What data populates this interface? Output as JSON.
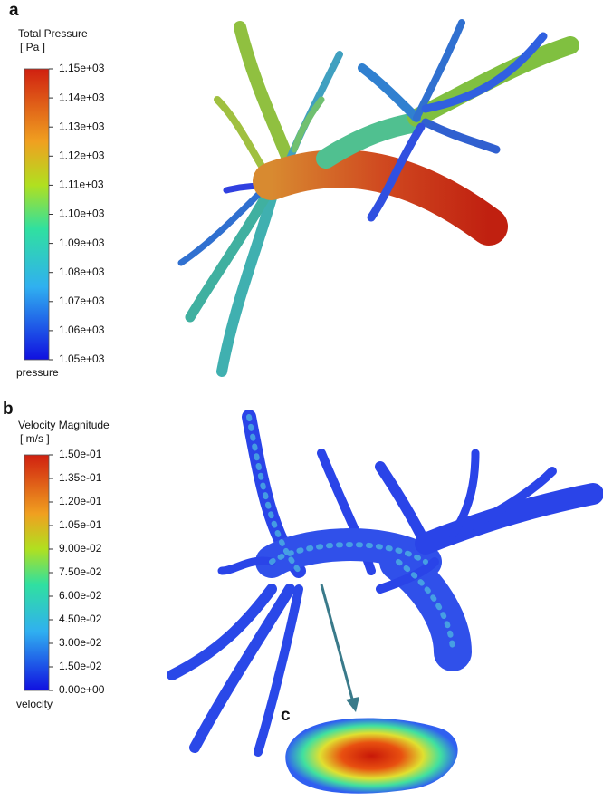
{
  "panels": [
    {
      "label": "a",
      "colorbar": {
        "title": "Total Pressure",
        "unit": "[ Pa ]",
        "variable": "pressure",
        "ticks": [
          {
            "value": 1150,
            "label": "1.15e+03"
          },
          {
            "value": 1140,
            "label": "1.14e+03"
          },
          {
            "value": 1130,
            "label": "1.13e+03"
          },
          {
            "value": 1120,
            "label": "1.12e+03"
          },
          {
            "value": 1110,
            "label": "1.11e+03"
          },
          {
            "value": 1100,
            "label": "1.10e+03"
          },
          {
            "value": 1090,
            "label": "1.09e+03"
          },
          {
            "value": 1080,
            "label": "1.08e+03"
          },
          {
            "value": 1070,
            "label": "1.07e+03"
          },
          {
            "value": 1060,
            "label": "1.06e+03"
          },
          {
            "value": 1050,
            "label": "1.05e+03"
          }
        ]
      }
    },
    {
      "label": "b",
      "colorbar": {
        "title": "Velocity Magnitude",
        "unit": "[ m/s ]",
        "variable": "velocity",
        "ticks": [
          {
            "value": 0.15,
            "label": "1.50e-01"
          },
          {
            "value": 0.135,
            "label": "1.35e-01"
          },
          {
            "value": 0.12,
            "label": "1.20e-01"
          },
          {
            "value": 0.105,
            "label": "1.05e-01"
          },
          {
            "value": 0.09,
            "label": "9.00e-02"
          },
          {
            "value": 0.075,
            "label": "7.50e-02"
          },
          {
            "value": 0.06,
            "label": "6.00e-02"
          },
          {
            "value": 0.045,
            "label": "4.50e-02"
          },
          {
            "value": 0.03,
            "label": "3.00e-02"
          },
          {
            "value": 0.015,
            "label": "1.50e-02"
          },
          {
            "value": 0,
            "label": "0.00e+00"
          }
        ]
      }
    },
    {
      "label": "c"
    }
  ]
}
